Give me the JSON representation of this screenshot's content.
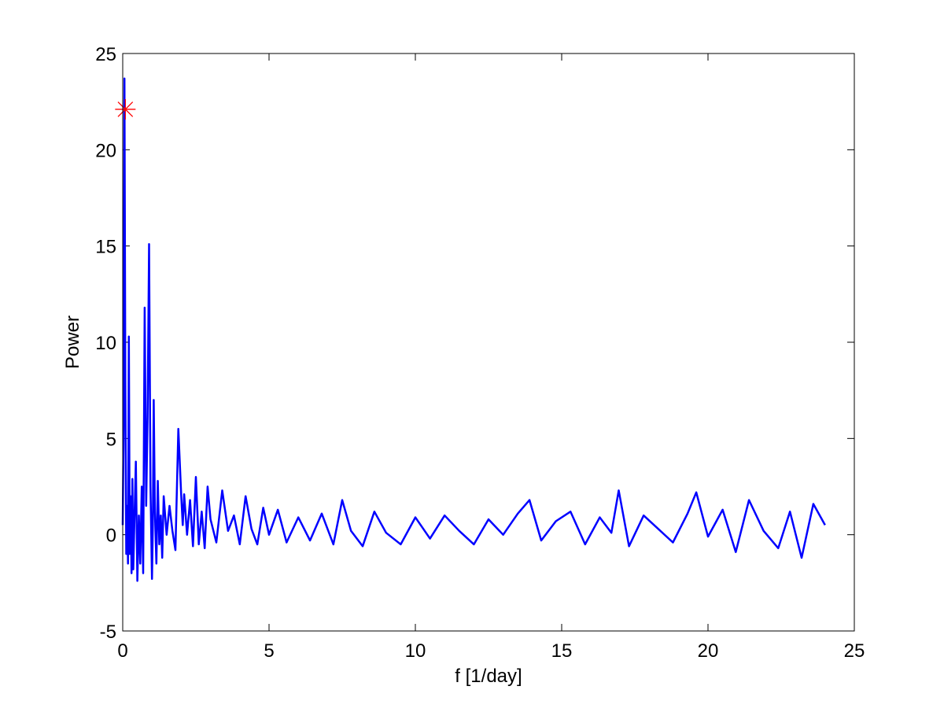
{
  "chart_data": {
    "type": "line",
    "title": "",
    "xlabel": "f [1/day]",
    "ylabel": "Power",
    "xlim": [
      0,
      25
    ],
    "ylim": [
      -5,
      25
    ],
    "xticks": [
      0,
      5,
      10,
      15,
      20,
      25
    ],
    "yticks": [
      -5,
      0,
      5,
      10,
      15,
      20,
      25
    ],
    "xtick_labels": [
      "0",
      "5",
      "10",
      "15",
      "20",
      "25"
    ],
    "ytick_labels": [
      "-5",
      "0",
      "5",
      "10",
      "15",
      "20",
      "25"
    ],
    "grid": false,
    "legend": "none",
    "series": [
      {
        "color": "#0000ff",
        "x": [
          0,
          0.03,
          0.06,
          0.09,
          0.12,
          0.15,
          0.18,
          0.21,
          0.24,
          0.27,
          0.3,
          0.33,
          0.36,
          0.4,
          0.45,
          0.5,
          0.55,
          0.6,
          0.65,
          0.7,
          0.75,
          0.8,
          0.85,
          0.9,
          0.95,
          1.0,
          1.03,
          1.06,
          1.1,
          1.15,
          1.2,
          1.25,
          1.3,
          1.35,
          1.4,
          1.5,
          1.6,
          1.7,
          1.8,
          1.9,
          2.0,
          2.05,
          2.1,
          2.2,
          2.3,
          2.4,
          2.5,
          2.6,
          2.7,
          2.8,
          2.9,
          3.0,
          3.2,
          3.4,
          3.6,
          3.8,
          4.0,
          4.2,
          4.4,
          4.6,
          4.8,
          5.0,
          5.3,
          5.6,
          6.0,
          6.4,
          6.8,
          7.2,
          7.5,
          7.8,
          8.2,
          8.6,
          9.0,
          9.5,
          10.0,
          10.5,
          11.0,
          11.5,
          12.0,
          12.5,
          13.0,
          13.5,
          13.9,
          14.3,
          14.8,
          15.3,
          15.8,
          16.3,
          16.7,
          16.95,
          17.3,
          17.8,
          18.3,
          18.8,
          19.3,
          19.6,
          20.0,
          20.5,
          20.95,
          21.4,
          21.9,
          22.4,
          22.8,
          23.2,
          23.6,
          24.0
        ],
        "y": [
          0.5,
          5.5,
          23.7,
          8.0,
          -1.0,
          1.5,
          -1.5,
          10.3,
          -1.0,
          2.0,
          -2.0,
          2.9,
          -1.8,
          0.8,
          3.8,
          -2.4,
          1.0,
          -1.5,
          2.5,
          -2.0,
          11.8,
          1.5,
          6.1,
          15.1,
          2.5,
          -2.3,
          0.5,
          7.0,
          1.2,
          -1.5,
          2.8,
          -0.5,
          1.0,
          -1.2,
          2.0,
          0.0,
          1.5,
          0.2,
          -0.8,
          5.5,
          2.0,
          0.5,
          2.1,
          0.0,
          1.8,
          -0.6,
          3.0,
          -0.5,
          1.2,
          -0.7,
          2.5,
          0.8,
          -0.4,
          2.3,
          0.2,
          1.0,
          -0.5,
          2.0,
          0.3,
          -0.5,
          1.4,
          0.0,
          1.3,
          -0.4,
          0.9,
          -0.3,
          1.1,
          -0.5,
          1.8,
          0.2,
          -0.6,
          1.2,
          0.1,
          -0.5,
          0.9,
          -0.2,
          1.0,
          0.2,
          -0.5,
          0.8,
          0.0,
          1.1,
          1.8,
          -0.3,
          0.7,
          1.2,
          -0.5,
          0.9,
          0.1,
          2.3,
          -0.6,
          1.0,
          0.3,
          -0.4,
          1.1,
          2.2,
          -0.1,
          1.3,
          -0.9,
          1.8,
          0.2,
          -0.7,
          1.2,
          -1.2,
          1.6,
          0.5
        ]
      }
    ],
    "markers": [
      {
        "x": 0.09,
        "y": 22.1,
        "symbol": "asterisk",
        "color": "#ff0000"
      }
    ]
  }
}
